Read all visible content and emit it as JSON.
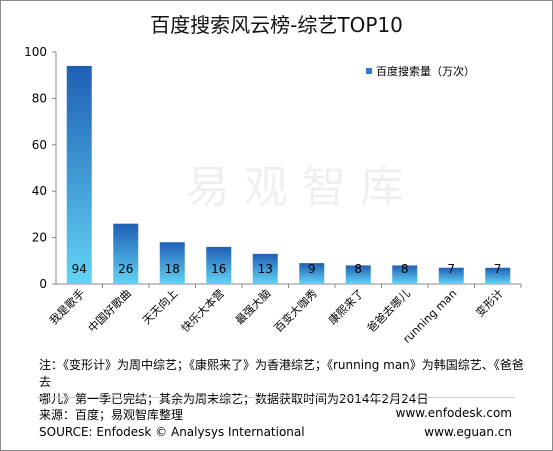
{
  "chart_data": {
    "type": "bar",
    "title": "百度搜索风云榜-综艺TOP10",
    "categories": [
      "我是歌手",
      "中国好歌曲",
      "天天向上",
      "快乐大本营",
      "最强大脑",
      "百变大咖秀",
      "康熙来了",
      "爸爸去哪儿",
      "running man",
      "变形计"
    ],
    "series": [
      {
        "name": "百度搜索量（万次）",
        "values": [
          94,
          26,
          18,
          16,
          13,
          9,
          8,
          8,
          7,
          7
        ]
      }
    ],
    "ylim": [
      0,
      100
    ],
    "yticks": [
      0,
      20,
      40,
      60,
      80,
      100
    ],
    "legend_position": "top-right",
    "grid": false,
    "bar_colors": {
      "top": "#1f5fb4",
      "bottom": "#62d4f5"
    }
  },
  "note": {
    "line1": "注：《变形计》为周中综艺；《康熙来了》为香港综艺；《running man》为韩国综艺、《爸爸去",
    "line2": "哪儿》第一季已完结；其余为周末综艺；数据获取时间为2014年2月24日"
  },
  "footer": {
    "source_cn": "来源：百度；易观智库整理",
    "source_en": "SOURCE: Enfodesk © Analysys International",
    "url1": "www.enfodesk.com",
    "url2": "www.eguan.cn"
  },
  "watermark": {
    "text": "易观智库"
  }
}
